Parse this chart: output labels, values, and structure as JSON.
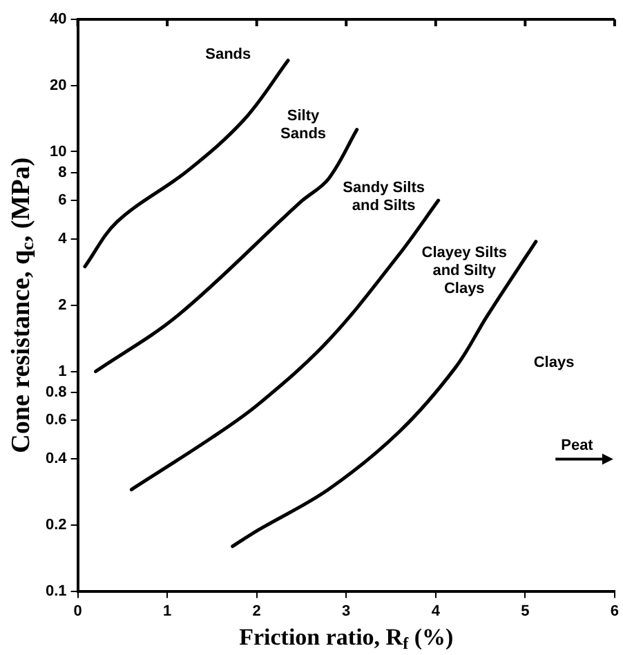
{
  "chart_data": {
    "type": "line",
    "xlabel": "Friction ratio, R$_{f}$ (%)",
    "ylabel": "Cone resistance, q$_{c}$, (MPa)",
    "log": "y",
    "xlim": [
      0,
      6
    ],
    "xticks": [
      0,
      1,
      2,
      3,
      4,
      5,
      6
    ],
    "ylim": [
      0.1,
      40
    ],
    "yticks": [
      0.1,
      0.2,
      0.4,
      0.6,
      0.8,
      1,
      2,
      4,
      6,
      8,
      10,
      20,
      40
    ],
    "grid": false,
    "legend": false,
    "marker": "none",
    "line_style": "solid",
    "series": [
      {
        "color": "#000000",
        "x": [
          0.08,
          0.44,
          1.23,
          1.86,
          2.35
        ],
        "values": [
          3.0,
          4.8,
          8.2,
          14,
          26
        ]
      },
      {
        "color": "#000000",
        "x": [
          0.2,
          1.12,
          2.49,
          2.8,
          3.12
        ],
        "values": [
          1.0,
          1.8,
          5.9,
          7.5,
          12.6
        ]
      },
      {
        "color": "#000000",
        "x": [
          0.6,
          1.5,
          2.02,
          2.8,
          3.59,
          4.03
        ],
        "values": [
          0.29,
          0.5,
          0.71,
          1.38,
          3.4,
          6.0
        ]
      },
      {
        "color": "#000000",
        "x": [
          1.73,
          2.02,
          2.8,
          3.59,
          4.22,
          4.58,
          5.12
        ],
        "values": [
          0.16,
          0.19,
          0.29,
          0.53,
          1.04,
          1.8,
          3.9
        ]
      }
    ],
    "annotations": [
      "Sands",
      "Silty\nSands",
      "Sandy Silts\nand Silts",
      "Clayey Silts\nand Silty\nClays",
      "Clays",
      "Peat"
    ]
  }
}
